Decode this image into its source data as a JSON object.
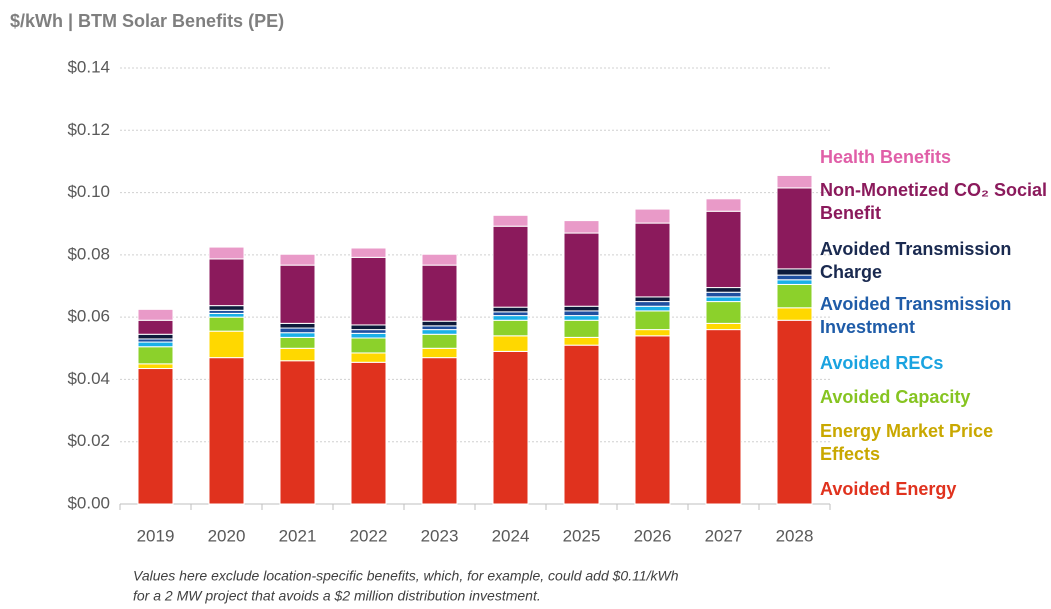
{
  "chart_data": {
    "type": "stacked_bar",
    "title": "$/kWh | BTM Solar Benefits (PE)",
    "categories": [
      "2019",
      "2020",
      "2021",
      "2022",
      "2023",
      "2024",
      "2025",
      "2026",
      "2027",
      "2028"
    ],
    "series": [
      {
        "name": "Avoided Energy",
        "color": "#e0321e",
        "label_color": "#e0321e",
        "values": [
          0.0435,
          0.047,
          0.046,
          0.0455,
          0.047,
          0.049,
          0.051,
          0.054,
          0.056,
          0.059
        ]
      },
      {
        "name": "Energy Market Price Effects",
        "color": "#ffd800",
        "label_color": "#c9a800",
        "values": [
          0.0015,
          0.0085,
          0.004,
          0.003,
          0.003,
          0.005,
          0.0025,
          0.002,
          0.002,
          0.004
        ]
      },
      {
        "name": "Avoided Capacity",
        "color": "#8cd12b",
        "label_color": "#86c421",
        "values": [
          0.0055,
          0.0045,
          0.0035,
          0.0048,
          0.0045,
          0.005,
          0.0055,
          0.006,
          0.007,
          0.0075
        ]
      },
      {
        "name": "Avoided RECs",
        "color": "#1ab0e8",
        "label_color": "#1aa3e0",
        "values": [
          0.0015,
          0.0012,
          0.0015,
          0.0015,
          0.0015,
          0.0015,
          0.0015,
          0.0015,
          0.0015,
          0.0015
        ]
      },
      {
        "name": "Avoided Transmission Investment",
        "color": "#1f4fa0",
        "label_color": "#1f5ca8",
        "values": [
          0.001,
          0.001,
          0.0015,
          0.0012,
          0.0012,
          0.0012,
          0.0015,
          0.0015,
          0.0015,
          0.0015
        ]
      },
      {
        "name": "Avoided Transmission Charge",
        "color": "#0d1a3a",
        "label_color": "#1a2a50",
        "values": [
          0.0015,
          0.0015,
          0.0015,
          0.0015,
          0.0015,
          0.0015,
          0.0015,
          0.0015,
          0.0015,
          0.002
        ]
      },
      {
        "name": "Non-Monetized CO₂ Social Benefit",
        "color": "#8b1a5c",
        "label_color": "#8b1a5c",
        "values": [
          0.0045,
          0.015,
          0.0187,
          0.0217,
          0.018,
          0.026,
          0.0235,
          0.0237,
          0.0245,
          0.026
        ]
      },
      {
        "name": "Health Benefits",
        "color": "#e99ac8",
        "label_color": "#e05fa8",
        "values": [
          0.0035,
          0.0038,
          0.0035,
          0.003,
          0.0035,
          0.0035,
          0.004,
          0.0045,
          0.004,
          0.004
        ]
      }
    ],
    "ylim": [
      0,
      0.14
    ],
    "yticks": [
      {
        "value": 0,
        "label": "$0.00"
      },
      {
        "value": 0.02,
        "label": "$0.02"
      },
      {
        "value": 0.04,
        "label": "$0.04"
      },
      {
        "value": 0.06,
        "label": "$0.06"
      },
      {
        "value": 0.08,
        "label": "$0.08"
      },
      {
        "value": 0.1,
        "label": "$0.10"
      },
      {
        "value": 0.12,
        "label": "$0.12"
      },
      {
        "value": 0.14,
        "label": "$0.14"
      }
    ],
    "grid": true,
    "legend": "right",
    "footnote": [
      "Values here exclude location-specific benefits, which, for example, could add $0.11/kWh",
      "for a 2 MW project that avoids a $2 million distribution investment."
    ]
  }
}
